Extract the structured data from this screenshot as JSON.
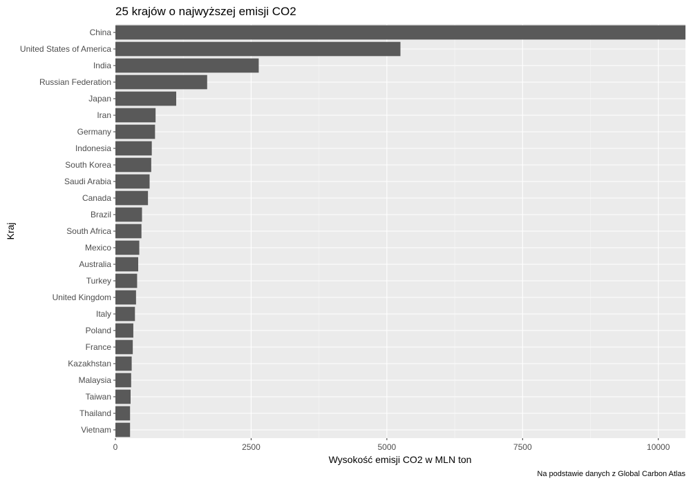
{
  "chart_data": {
    "type": "bar",
    "orientation": "horizontal",
    "title": "25 krajów o najwyższej emisji CO2",
    "xlabel": "Wysokość emisji CO2 w MLN ton",
    "ylabel": "Kraj",
    "caption": "Na podstawie danych z Global Carbon Atlas",
    "xlim": [
      0,
      10500
    ],
    "x_ticks": [
      0,
      2500,
      5000,
      7500,
      10000
    ],
    "x_tick_labels": [
      "0",
      "2500",
      "5000",
      "7500",
      "10000"
    ],
    "grid": true,
    "bar_color": "#595959",
    "panel_color": "#ebebeb",
    "categories": [
      "China",
      "United States of America",
      "India",
      "Russian Federation",
      "Japan",
      "Iran",
      "Germany",
      "Indonesia",
      "South Korea",
      "Saudi Arabia",
      "Canada",
      "Brazil",
      "South Africa",
      "Mexico",
      "Australia",
      "Turkey",
      "United Kingdom",
      "Italy",
      "Poland",
      "France",
      "Kazakhstan",
      "Malaysia",
      "Taiwan",
      "Thailand",
      "Vietnam"
    ],
    "values": [
      10500,
      5250,
      2640,
      1690,
      1120,
      740,
      730,
      670,
      660,
      630,
      600,
      490,
      480,
      440,
      420,
      400,
      380,
      360,
      330,
      320,
      300,
      290,
      280,
      270,
      270
    ]
  }
}
